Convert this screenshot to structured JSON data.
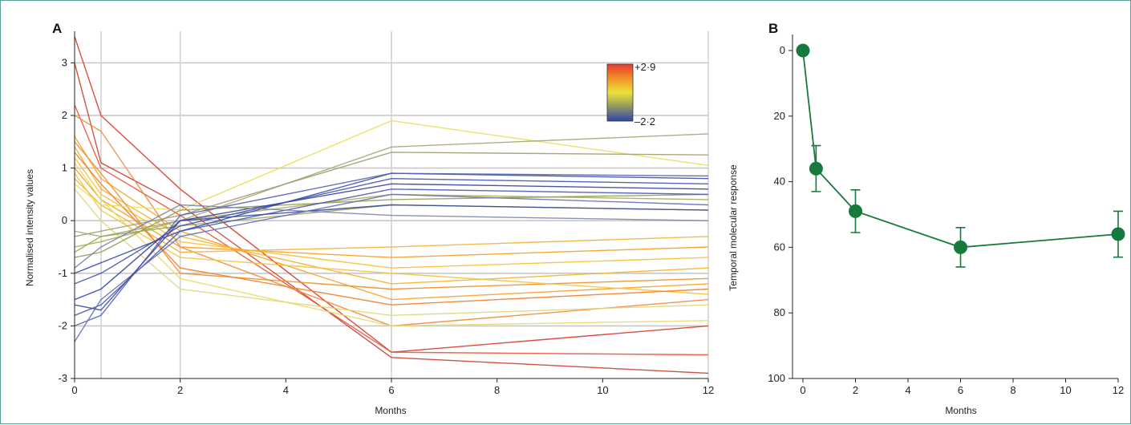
{
  "figure": {
    "border_color": "#5a9e97"
  },
  "chart_data": [
    {
      "panel": "A",
      "type": "line",
      "xlabel": "Months",
      "ylabel": "Normalised intensity values",
      "x": [
        0,
        0.5,
        2,
        6,
        12
      ],
      "xlim": [
        0,
        12
      ],
      "ylim": [
        -3,
        3.6
      ],
      "xticks": [
        0,
        2,
        4,
        6,
        8,
        10,
        12
      ],
      "yticks": [
        -3,
        -2,
        -1,
        0,
        1,
        2,
        3
      ],
      "grid": true,
      "legend": "colorbar-top-right",
      "colorbar": {
        "max_label": "+2·9",
        "min_label": "–2·2",
        "max": 2.9,
        "min": -2.2
      },
      "series": [
        {
          "values": [
            3.5,
            2.0,
            0.6,
            -2.5,
            -2.0
          ],
          "color": "#d83a2e"
        },
        {
          "values": [
            3.0,
            1.1,
            0.3,
            -2.6,
            -2.9
          ],
          "color": "#c8402c"
        },
        {
          "values": [
            2.2,
            1.0,
            0.1,
            -2.5,
            -2.55
          ],
          "color": "#e8553a"
        },
        {
          "values": [
            2.0,
            1.7,
            -0.5,
            -2.0,
            -1.5
          ],
          "color": "#f08a3a"
        },
        {
          "values": [
            1.6,
            0.8,
            -0.2,
            -1.5,
            -1.2
          ],
          "color": "#f7a12c"
        },
        {
          "values": [
            1.4,
            0.6,
            -0.3,
            -1.2,
            -0.9
          ],
          "color": "#f5b02a"
        },
        {
          "values": [
            1.2,
            0.5,
            -0.4,
            -0.9,
            -0.7
          ],
          "color": "#f9bf2e"
        },
        {
          "values": [
            1.0,
            0.4,
            -0.5,
            -0.7,
            -0.5
          ],
          "color": "#f4a024"
        },
        {
          "values": [
            0.8,
            0.3,
            -0.6,
            -0.5,
            -0.3
          ],
          "color": "#f2b33a"
        },
        {
          "values": [
            1.5,
            0.9,
            -1.0,
            -1.3,
            -1.1
          ],
          "color": "#ef8e28"
        },
        {
          "values": [
            0.9,
            0.2,
            -0.7,
            -1.0,
            -1.4
          ],
          "color": "#f6c23c"
        },
        {
          "values": [
            1.3,
            0.7,
            -0.9,
            -1.6,
            -1.3
          ],
          "color": "#ef7f2a"
        },
        {
          "values": [
            0.7,
            0.3,
            0.2,
            1.9,
            1.05
          ],
          "color": "#e8e05a"
        },
        {
          "values": [
            1.1,
            0.4,
            -1.1,
            -2.0,
            -1.9
          ],
          "color": "#e6dc6a"
        },
        {
          "values": [
            0.6,
            0.0,
            -1.3,
            -1.8,
            -1.6
          ],
          "color": "#dcd77a"
        },
        {
          "values": [
            -0.2,
            -0.3,
            0.0,
            1.4,
            1.65
          ],
          "color": "#a9a57a"
        },
        {
          "values": [
            -0.3,
            -0.2,
            0.1,
            1.3,
            1.25
          ],
          "color": "#9f9d72"
        },
        {
          "values": [
            -0.5,
            -0.4,
            0.0,
            0.5,
            0.4
          ],
          "color": "#a6ad58"
        },
        {
          "values": [
            -0.6,
            -0.3,
            -0.1,
            0.3,
            0.2
          ],
          "color": "#9aa84e"
        },
        {
          "values": [
            -0.7,
            -0.6,
            0.2,
            0.4,
            0.5
          ],
          "color": "#8f9f55"
        },
        {
          "values": [
            -1.0,
            -0.8,
            -0.2,
            0.9,
            0.8
          ],
          "color": "#3b4fa8"
        },
        {
          "values": [
            -1.2,
            -1.0,
            -0.1,
            0.8,
            0.7
          ],
          "color": "#4353ae"
        },
        {
          "values": [
            -1.5,
            -1.3,
            0.0,
            0.7,
            0.6
          ],
          "color": "#3344a0"
        },
        {
          "values": [
            -1.8,
            -1.6,
            -0.2,
            0.6,
            0.5
          ],
          "color": "#4a5ab4"
        },
        {
          "values": [
            -2.0,
            -1.8,
            0.1,
            0.9,
            0.85
          ],
          "color": "#5562b0"
        },
        {
          "values": [
            -2.3,
            -1.5,
            -0.3,
            0.5,
            0.3
          ],
          "color": "#6670b6"
        },
        {
          "values": [
            -1.6,
            -1.7,
            0.0,
            0.3,
            0.2
          ],
          "color": "#3d4aa4"
        },
        {
          "values": [
            -0.9,
            -0.5,
            0.3,
            0.1,
            0.0
          ],
          "color": "#7c86a8"
        }
      ]
    },
    {
      "panel": "B",
      "type": "scatter",
      "xlabel": "Months",
      "ylabel": "Temporal molecular response",
      "x": [
        0,
        0.5,
        2,
        6,
        12
      ],
      "values": [
        0,
        36,
        49,
        60,
        56
      ],
      "error": [
        0,
        7,
        6.5,
        6,
        7
      ],
      "xlim": [
        0,
        12
      ],
      "ylim": [
        0,
        100
      ],
      "y_inverted": true,
      "xticks": [
        0,
        2,
        4,
        6,
        8,
        10,
        12
      ],
      "yticks": [
        0,
        20,
        40,
        60,
        80,
        100
      ],
      "grid": false,
      "color": "#157a3c"
    }
  ]
}
